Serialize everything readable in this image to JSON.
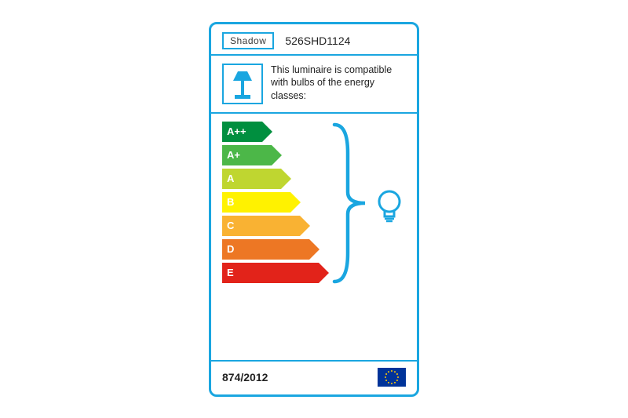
{
  "border_color": "#1aa6e0",
  "header": {
    "brand": "Shadow",
    "model": "526SHD1124"
  },
  "description": {
    "line": "This luminaire is compatible with bulbs of the energy classes:"
  },
  "ratings": [
    {
      "label": "A++",
      "color": "#008f3f",
      "width": 45
    },
    {
      "label": "A+",
      "color": "#4cb748",
      "width": 57
    },
    {
      "label": "A",
      "color": "#bfd630",
      "width": 69
    },
    {
      "label": "B",
      "color": "#fff200",
      "width": 81
    },
    {
      "label": "C",
      "color": "#f9b233",
      "width": 93
    },
    {
      "label": "D",
      "color": "#ed7724",
      "width": 105
    },
    {
      "label": "E",
      "color": "#e2231a",
      "width": 117
    }
  ],
  "footer": {
    "regulation": "874/2012"
  },
  "style": {
    "label_text_color": "#ffffff",
    "label_font_size": 13,
    "arrow_height": 26,
    "arrow_gap": 4
  },
  "eu_flag": {
    "bg": "#003399",
    "star_color": "#ffcc00",
    "star_count": 12
  }
}
